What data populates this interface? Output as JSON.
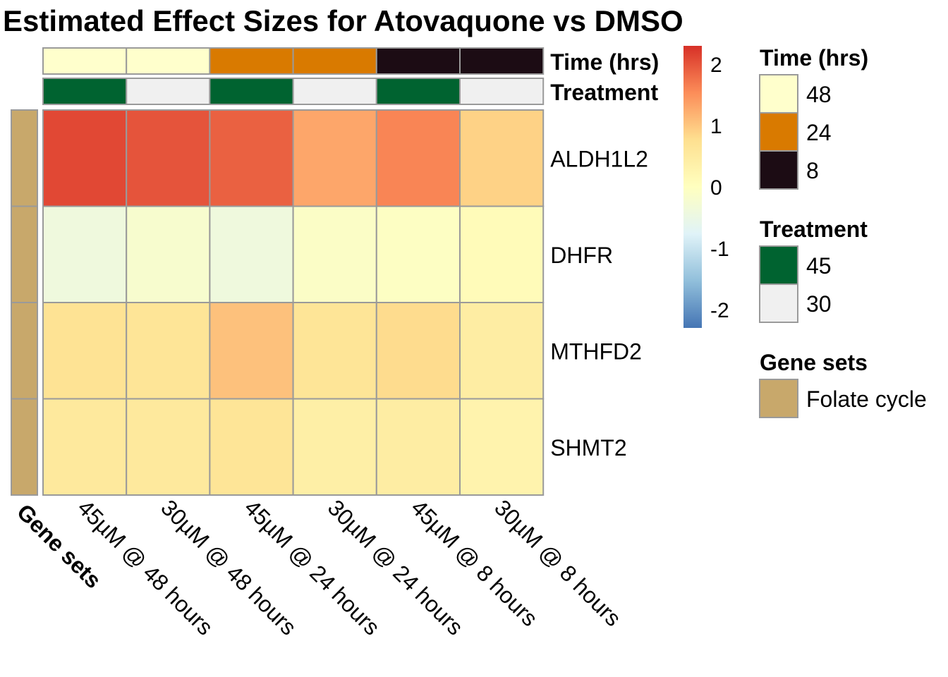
{
  "chart_data": {
    "type": "heatmap",
    "title": "Estimated Effect Sizes for Atovaquone vs DMSO",
    "columns": [
      "45µM @ 48 hours",
      "30µM @ 48 hours",
      "45µM @ 24 hours",
      "30µM @ 24 hours",
      "45µM @ 8 hours",
      "30µM @ 8 hours"
    ],
    "rows": [
      "ALDH1L2",
      "DHFR",
      "MTHFD2",
      "SHMT2"
    ],
    "values": [
      [
        2.1,
        2.0,
        1.9,
        1.3,
        1.6,
        0.9
      ],
      [
        -0.4,
        -0.2,
        -0.4,
        -0.1,
        -0.05,
        0.1
      ],
      [
        0.7,
        0.65,
        1.05,
        0.65,
        0.8,
        0.45
      ],
      [
        0.55,
        0.55,
        0.65,
        0.4,
        0.45,
        0.3
      ]
    ],
    "color_scale": {
      "range": [
        -2.3,
        2.3
      ],
      "ticks": [
        "2",
        "1",
        "0",
        "-1",
        "-2"
      ],
      "tick_values": [
        2,
        1,
        0,
        -1,
        -2
      ],
      "palette": [
        "#4575b4",
        "#91bfdb",
        "#e0f3f8",
        "#ffffbf",
        "#fee090",
        "#fc8d59",
        "#d73027"
      ]
    },
    "column_annotations": [
      {
        "label": "Time (hrs)",
        "values": [
          "48",
          "48",
          "24",
          "24",
          "8",
          "8"
        ],
        "colors": {
          "48": "#ffffcc",
          "24": "#d97a00",
          "8": "#1c0c14"
        }
      },
      {
        "label": "Treatment",
        "values": [
          "45",
          "30",
          "45",
          "30",
          "45",
          "30"
        ],
        "colors": {
          "45": "#006330",
          "30": "#f0f0f0"
        }
      }
    ],
    "row_annotation": {
      "label": "Gene sets",
      "values": [
        "Folate cycle",
        "Folate cycle",
        "Folate cycle",
        "Folate cycle"
      ],
      "colors": {
        "Folate cycle": "#c8a86b"
      }
    },
    "legends": [
      {
        "title": "Time (hrs)",
        "entries": [
          {
            "label": "48",
            "color": "#ffffcc"
          },
          {
            "label": "24",
            "color": "#d97a00"
          },
          {
            "label": "8",
            "color": "#1c0c14"
          }
        ]
      },
      {
        "title": "Treatment",
        "entries": [
          {
            "label": "45",
            "color": "#006330"
          },
          {
            "label": "30",
            "color": "#f0f0f0"
          }
        ]
      },
      {
        "title": "Gene sets",
        "entries": [
          {
            "label": "Folate cycle",
            "color": "#c8a86b"
          }
        ]
      }
    ],
    "legend_position": "right",
    "grid": true
  }
}
